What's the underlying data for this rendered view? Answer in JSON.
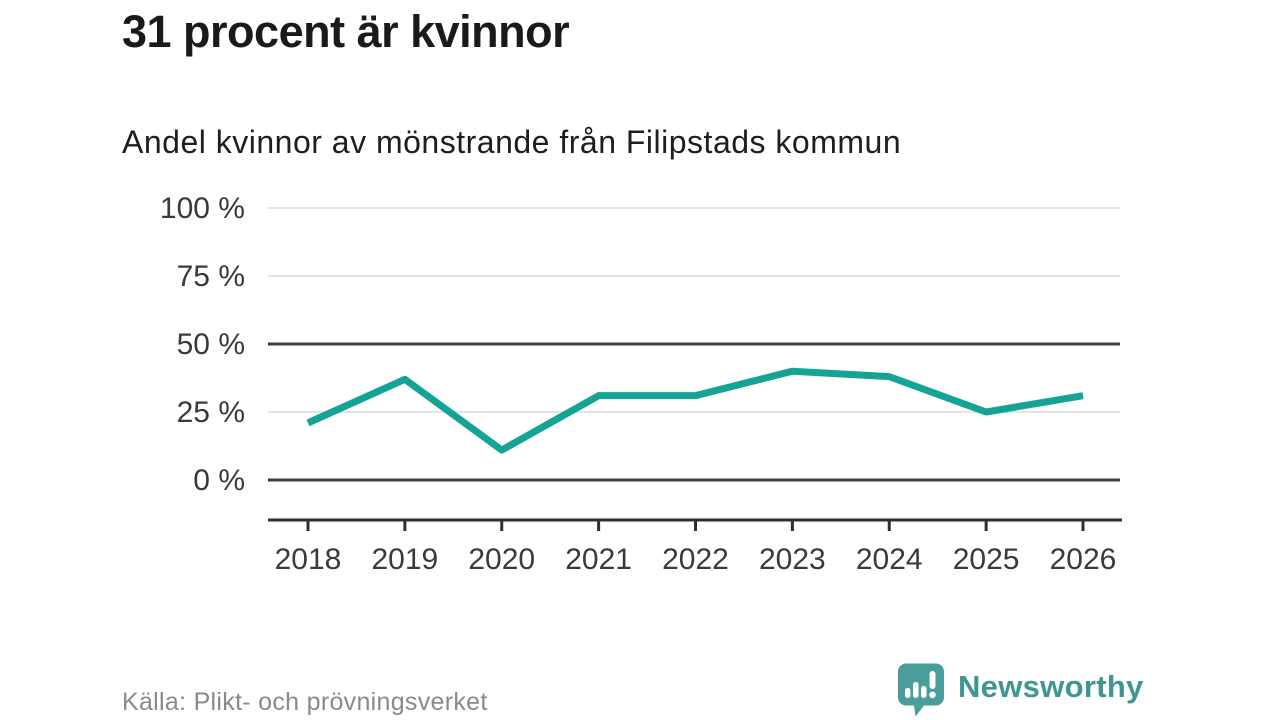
{
  "header": {
    "title": "31 procent är kvinnor",
    "subtitle": "Andel kvinnor av mönstrande från Filipstads kommun"
  },
  "chart_data": {
    "type": "line",
    "title": "31 procent är kvinnor",
    "subtitle": "Andel kvinnor av mönstrande från Filipstads kommun",
    "x": [
      2018,
      2019,
      2020,
      2021,
      2022,
      2023,
      2024,
      2025,
      2026
    ],
    "series": [
      {
        "name": "Andel kvinnor av mönstrande",
        "values": [
          21,
          37,
          11,
          31,
          31,
          40,
          38,
          25,
          31
        ]
      }
    ],
    "ylim": [
      0,
      100
    ],
    "yticks": [
      0,
      25,
      50,
      75,
      100
    ],
    "ytick_suffix": " %",
    "emphasized_gridlines": [
      0,
      50
    ],
    "grid_on": true,
    "legend": "none",
    "style": {
      "line_color": "#13a495",
      "grid_color": "#e4e4e4",
      "emphasis_grid_color": "#3d3d3d",
      "axis_color": "#2f2f2f",
      "label_color": "#3a3a3a"
    }
  },
  "footer": {
    "source": "Källa: Plikt- och prövningsverket",
    "brand": {
      "name": "Newsworthy",
      "text_color": "#3e9693",
      "icon_color": "#4a9d9a",
      "icon_glyph_color": "#ffffff"
    }
  }
}
